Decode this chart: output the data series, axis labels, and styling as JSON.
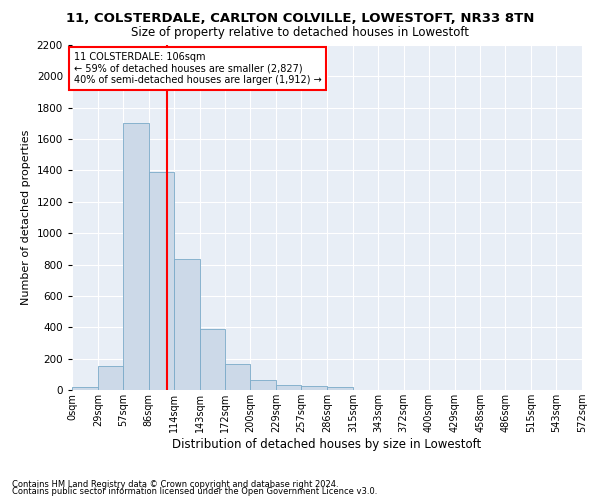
{
  "title": "11, COLSTERDALE, CARLTON COLVILLE, LOWESTOFT, NR33 8TN",
  "subtitle": "Size of property relative to detached houses in Lowestoft",
  "xlabel": "Distribution of detached houses by size in Lowestoft",
  "ylabel": "Number of detached properties",
  "bar_color": "#ccd9e8",
  "bar_edge_color": "#7aaac8",
  "background_color": "#e8eef6",
  "grid_color": "#ffffff",
  "annotation_text": "11 COLSTERDALE: 106sqm\n← 59% of detached houses are smaller (2,827)\n40% of semi-detached houses are larger (1,912) →",
  "vline_x": 106,
  "vline_color": "red",
  "bin_edges": [
    0,
    29,
    57,
    86,
    114,
    143,
    172,
    200,
    229,
    257,
    286,
    315,
    343,
    372,
    400,
    429,
    458,
    486,
    515,
    543,
    572
  ],
  "bin_labels": [
    "0sqm",
    "29sqm",
    "57sqm",
    "86sqm",
    "114sqm",
    "143sqm",
    "172sqm",
    "200sqm",
    "229sqm",
    "257sqm",
    "286sqm",
    "315sqm",
    "343sqm",
    "372sqm",
    "400sqm",
    "429sqm",
    "458sqm",
    "486sqm",
    "515sqm",
    "543sqm",
    "572sqm"
  ],
  "bar_heights": [
    20,
    155,
    1700,
    1390,
    835,
    390,
    165,
    65,
    30,
    28,
    22,
    0,
    0,
    0,
    0,
    0,
    0,
    0,
    0,
    0
  ],
  "ylim": [
    0,
    2200
  ],
  "yticks": [
    0,
    200,
    400,
    600,
    800,
    1000,
    1200,
    1400,
    1600,
    1800,
    2000,
    2200
  ],
  "footnote1": "Contains HM Land Registry data © Crown copyright and database right 2024.",
  "footnote2": "Contains public sector information licensed under the Open Government Licence v3.0."
}
